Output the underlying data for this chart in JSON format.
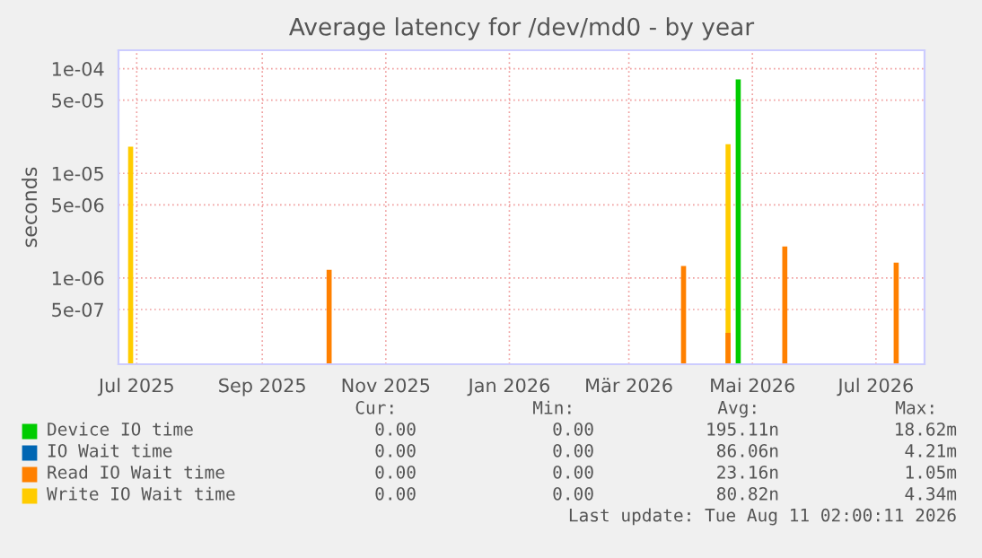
{
  "chart_data": {
    "type": "bar",
    "title": "Average latency for /dev/md0 - by year",
    "ylabel": "seconds",
    "log": "y",
    "ylim": [
      1.5e-07,
      0.00015
    ],
    "yticks": [
      {
        "value": 0.0001,
        "label": "1e-04"
      },
      {
        "value": 5e-05,
        "label": "5e-05"
      },
      {
        "value": 1e-05,
        "label": "1e-05"
      },
      {
        "value": 5e-06,
        "label": "5e-06"
      },
      {
        "value": 1e-06,
        "label": "1e-06"
      },
      {
        "value": 5e-07,
        "label": "5e-07"
      }
    ],
    "xlim": [
      "2025-07-07",
      "2026-08-09"
    ],
    "xticks": [
      {
        "value": "2025-07-16",
        "label": "Jul 2025"
      },
      {
        "value": "2025-09-16",
        "label": "Sep 2025"
      },
      {
        "value": "2025-11-16",
        "label": "Nov 2025"
      },
      {
        "value": "2026-01-16",
        "label": "Jan 2026"
      },
      {
        "value": "2026-03-16",
        "label": "Mär 2026"
      },
      {
        "value": "2026-05-16",
        "label": "Mai 2026"
      },
      {
        "value": "2026-07-16",
        "label": "Jul 2026"
      }
    ],
    "grid": true,
    "legend": "bottom",
    "series": [
      {
        "name": "Device IO time",
        "color": "#00cc00",
        "x": [
          "2026-05-09"
        ],
        "values": [
          7.9e-05
        ]
      },
      {
        "name": "IO Wait time",
        "color": "#0066b3"
      },
      {
        "name": "Read IO Wait time",
        "color": "#ff8000",
        "x": [
          "2025-10-19",
          "2026-04-12",
          "2026-05-04",
          "2026-06-01",
          "2026-07-26"
        ],
        "values": [
          1.2e-06,
          1.3e-06,
          3e-07,
          2e-06,
          1.4e-06
        ]
      },
      {
        "name": "Write IO Wait time",
        "color": "#ffcc00",
        "x": [
          "2025-07-13",
          "2026-05-04"
        ],
        "values": [
          1.8e-05,
          1.9e-05
        ]
      }
    ],
    "annotations": [
      "Cur:",
      "Min:",
      "Avg:",
      "Max:",
      "0.00",
      "0.00",
      "195.11n",
      "18.62m",
      "0.00",
      "0.00",
      "86.06n",
      "4.21m",
      "0.00",
      "0.00",
      "23.16n",
      "1.05m",
      "0.00",
      "0.00",
      "80.82n",
      "4.34m",
      "Last update: Tue Aug 11 02:00:11 2026"
    ]
  }
}
